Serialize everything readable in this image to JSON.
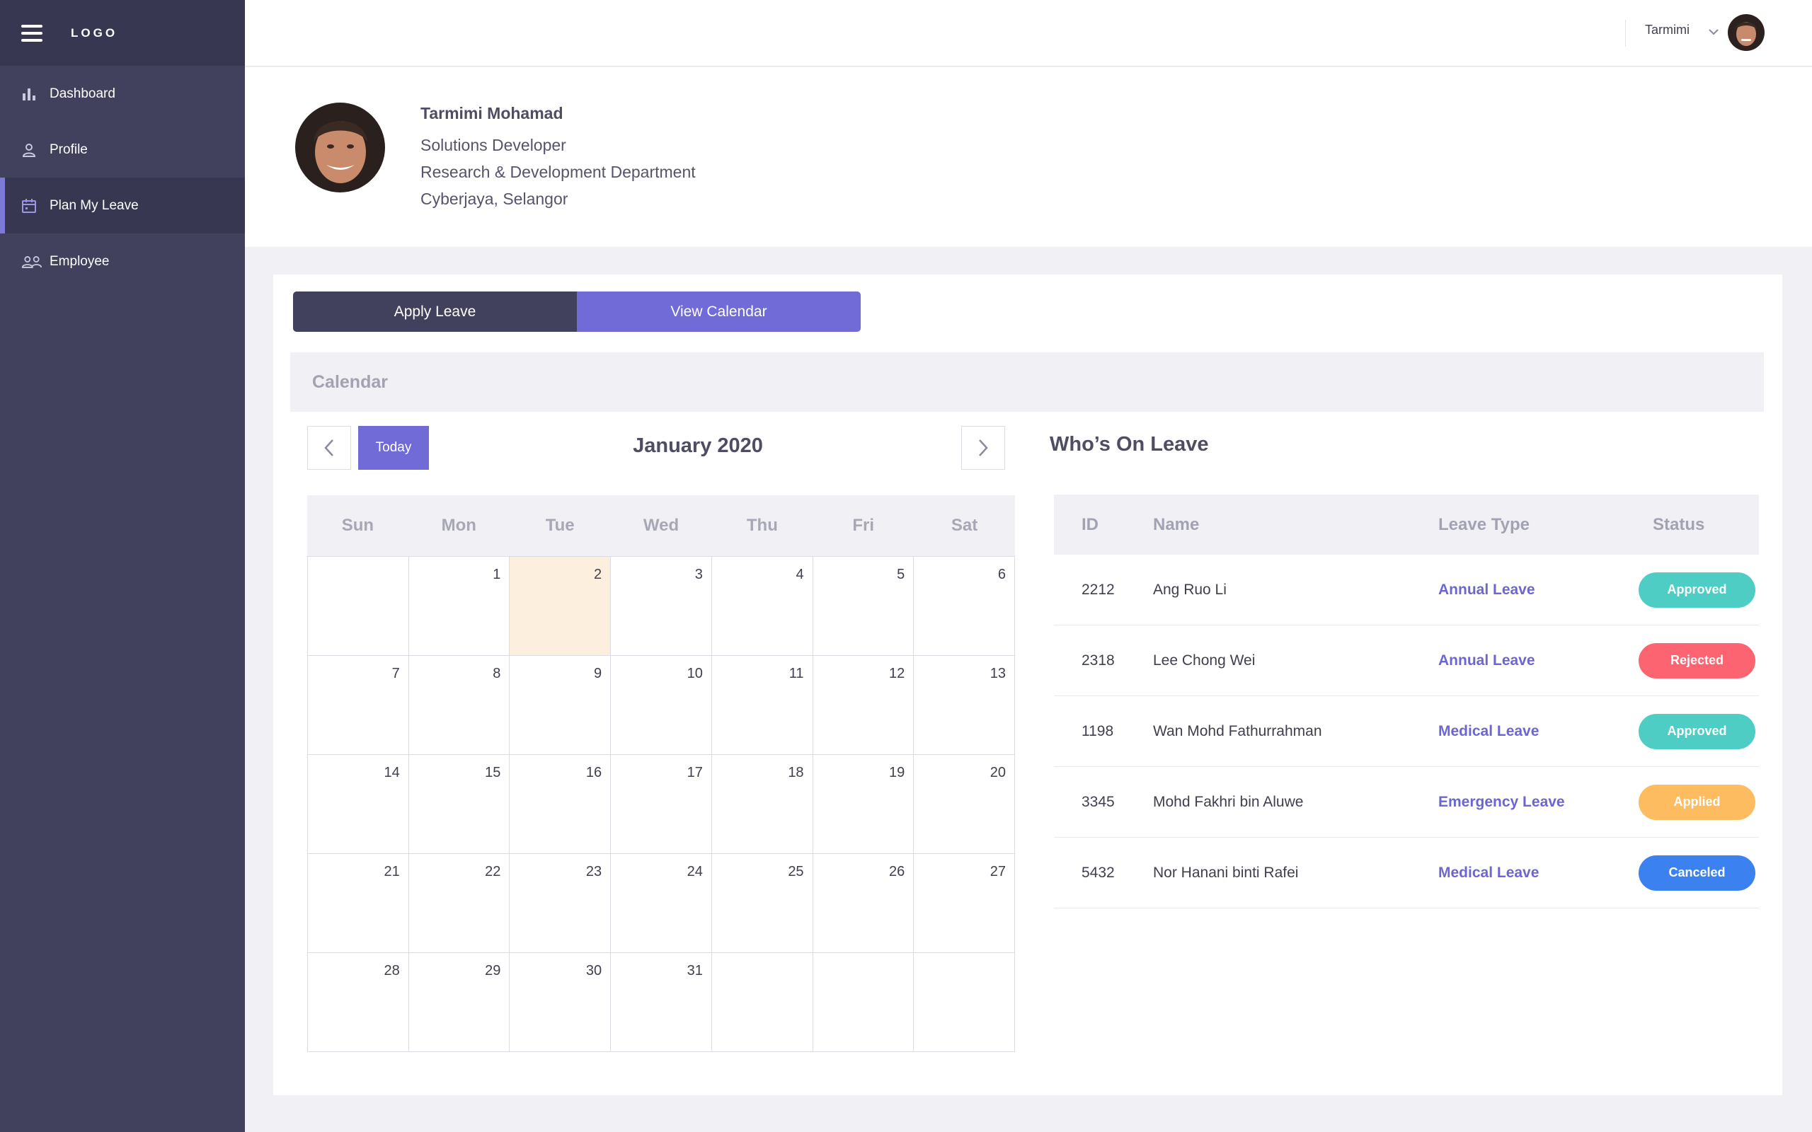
{
  "app": {
    "logo": "LOGO"
  },
  "sidebar": {
    "items": [
      {
        "label": "Dashboard",
        "icon": "bar-chart-icon"
      },
      {
        "label": "Profile",
        "icon": "user-icon"
      },
      {
        "label": "Plan My Leave",
        "icon": "calendar-icon",
        "active": true
      },
      {
        "label": "Employee",
        "icon": "users-icon"
      }
    ]
  },
  "topbar": {
    "user_name": "Tarmimi"
  },
  "profile": {
    "name": "Tarmimi Mohamad",
    "title": "Solutions Developer",
    "department": "Research & Development Department",
    "location": "Cyberjaya, Selangor"
  },
  "tabs": {
    "apply": "Apply Leave",
    "view": "View Calendar"
  },
  "calendar": {
    "header": "Calendar",
    "today_label": "Today",
    "month_title": "January 2020",
    "weekdays": [
      "Sun",
      "Mon",
      "Tue",
      "Wed",
      "Thu",
      "Fri",
      "Sat"
    ],
    "cells": [
      "",
      "1",
      "2",
      "3",
      "4",
      "5",
      "6",
      "7",
      "8",
      "9",
      "10",
      "11",
      "12",
      "13",
      "14",
      "15",
      "16",
      "17",
      "18",
      "19",
      "20",
      "21",
      "22",
      "23",
      "24",
      "25",
      "26",
      "27",
      "28",
      "29",
      "30",
      "31",
      "",
      "",
      ""
    ],
    "highlighted_day": "2"
  },
  "whos_on_leave": {
    "title": "Who’s On Leave",
    "columns": {
      "id": "ID",
      "name": "Name",
      "leave_type": "Leave Type",
      "status": "Status"
    },
    "rows": [
      {
        "id": "2212",
        "name": "Ang Ruo Li",
        "leave_type": "Annual Leave",
        "status": "Approved",
        "status_color": "#4ecdc4"
      },
      {
        "id": "2318",
        "name": "Lee Chong Wei",
        "leave_type": "Annual Leave",
        "status": "Rejected",
        "status_color": "#fc6471"
      },
      {
        "id": "1198",
        "name": "Wan Mohd Fathurrahman",
        "leave_type": "Medical Leave",
        "status": "Approved",
        "status_color": "#4ecdc4"
      },
      {
        "id": "3345",
        "name": "Mohd Fakhri bin Aluwe",
        "leave_type": "Emergency Leave",
        "status": "Applied",
        "status_color": "#fdbc5f"
      },
      {
        "id": "5432",
        "name": "Nor Hanani binti Rafei",
        "leave_type": "Medical Leave",
        "status": "Canceled",
        "status_color": "#3b82f0"
      }
    ]
  },
  "colors": {
    "sidebar": "#41405d",
    "sidebar_dark": "#383752",
    "accent": "#706bd6",
    "today_highlight": "#fdefdd"
  }
}
